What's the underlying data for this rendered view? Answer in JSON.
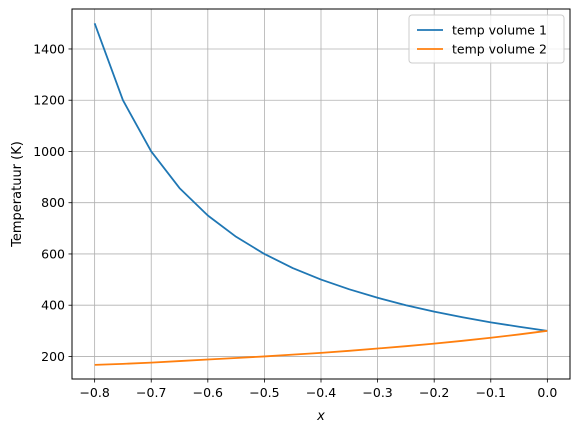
{
  "chart_data": {
    "type": "line",
    "title": "",
    "xlabel": "x",
    "ylabel": "Temperatuur (K)",
    "xlim": [
      -0.84,
      0.04
    ],
    "ylim": [
      112,
      1556
    ],
    "xticks": [
      -0.8,
      -0.7,
      -0.6,
      -0.5,
      -0.4,
      -0.3,
      -0.2,
      -0.1,
      0.0
    ],
    "xtick_labels": [
      "−0.8",
      "−0.7",
      "−0.6",
      "−0.5",
      "−0.4",
      "−0.3",
      "−0.2",
      "−0.1",
      "0.0"
    ],
    "yticks": [
      200,
      400,
      600,
      800,
      1000,
      1200,
      1400
    ],
    "ytick_labels": [
      "200",
      "400",
      "600",
      "800",
      "1000",
      "1200",
      "1400"
    ],
    "grid": true,
    "legend_position": "top-right",
    "x": [
      -0.8,
      -0.75,
      -0.7,
      -0.65,
      -0.6,
      -0.55,
      -0.5,
      -0.45,
      -0.4,
      -0.35,
      -0.3,
      -0.25,
      -0.2,
      -0.15,
      -0.1,
      -0.05,
      0.0
    ],
    "series": [
      {
        "name": "temp volume 1",
        "color": "#1f77b4",
        "values": [
          1500,
          1200,
          1000,
          857,
          750,
          667,
          600,
          545,
          500,
          462,
          429,
          400,
          375,
          353,
          333,
          316,
          300
        ]
      },
      {
        "name": "temp volume 2",
        "color": "#ff7f0e",
        "values": [
          167,
          171,
          176,
          182,
          188,
          194,
          200,
          207,
          214,
          222,
          231,
          240,
          250,
          261,
          273,
          286,
          300
        ]
      }
    ]
  }
}
